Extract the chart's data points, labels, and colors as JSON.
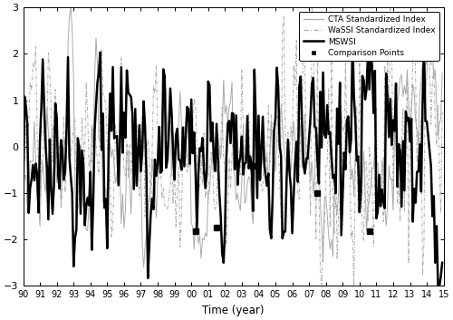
{
  "xlabel": "Time (year)",
  "xlim": [
    1990,
    2015
  ],
  "ylim": [
    -3,
    3
  ],
  "yticks": [
    -3,
    -2,
    -1,
    0,
    1,
    2,
    3
  ],
  "xtick_labels": [
    "90",
    "91",
    "92",
    "93",
    "94",
    "95",
    "96",
    "97",
    "98",
    "99",
    "00",
    "01",
    "02",
    "03",
    "04",
    "05",
    "06",
    "07",
    "08",
    "09",
    "10",
    "11",
    "12",
    "13",
    "14",
    "15"
  ],
  "xtick_positions": [
    1990,
    1991,
    1992,
    1993,
    1994,
    1995,
    1996,
    1997,
    1998,
    1999,
    2000,
    2001,
    2002,
    2003,
    2004,
    2005,
    2006,
    2007,
    2008,
    2009,
    2010,
    2011,
    2012,
    2013,
    2014,
    2015
  ],
  "cta_color": "#aaaaaa",
  "wassi_color": "#aaaaaa",
  "mswsi_color": "#000000",
  "comparison_color": "#000000",
  "legend_labels": [
    "CTA Standardized Index",
    "WaSSI Standardized Index",
    "MSWSI",
    "Comparison Points"
  ],
  "comparison_points_x": [
    2000.25,
    2001.5,
    2003.67,
    2007.5,
    2010.58
  ],
  "comparison_points_y": [
    -1.82,
    -1.75,
    -0.42,
    -1.0,
    -1.82
  ],
  "figsize": [
    5.0,
    3.53
  ],
  "dpi": 100
}
